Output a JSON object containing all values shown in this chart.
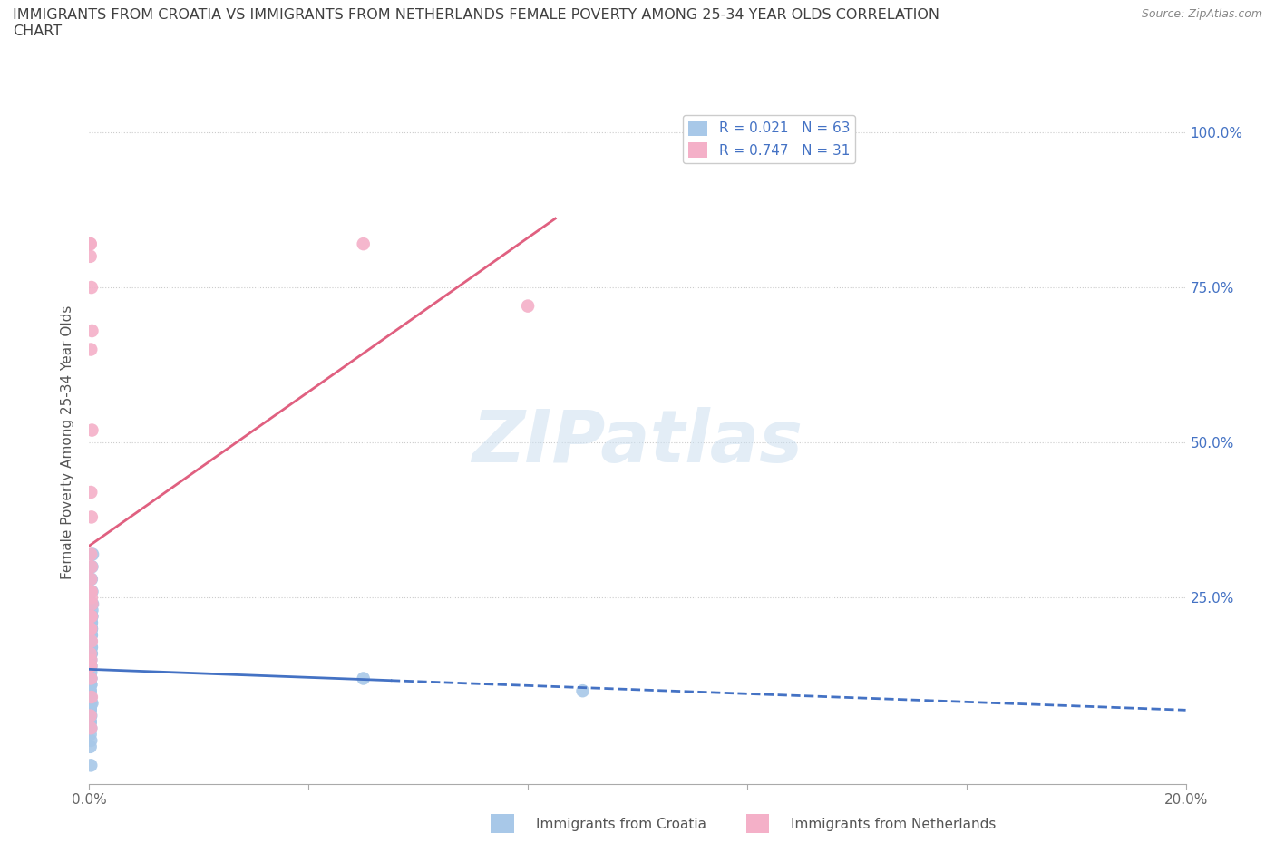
{
  "title": "IMMIGRANTS FROM CROATIA VS IMMIGRANTS FROM NETHERLANDS FEMALE POVERTY AMONG 25-34 YEAR OLDS CORRELATION\nCHART",
  "source_text": "Source: ZipAtlas.com",
  "ylabel": "Female Poverty Among 25-34 Year Olds",
  "xlabel_croatia": "Immigrants from Croatia",
  "xlabel_netherlands": "Immigrants from Netherlands",
  "watermark_text": "ZIPatlas",
  "R_croatia": 0.021,
  "N_croatia": 63,
  "R_netherlands": 0.747,
  "N_netherlands": 31,
  "color_croatia": "#a8c8e8",
  "color_netherlands": "#f4b0c8",
  "trendline_croatia_color": "#4472c4",
  "trendline_netherlands_color": "#e06080",
  "legend_r_color": "#4472c4",
  "background_color": "#ffffff",
  "grid_color": "#cccccc",
  "title_color": "#404040",
  "right_axis_color": "#4472c4",
  "source_color": "#888888",
  "croatia_x": [
    0.0002,
    0.0003,
    0.0005,
    0.0002,
    0.0004,
    0.0006,
    0.0003,
    0.0005,
    0.0004,
    0.0003,
    0.0002,
    0.0004,
    0.0003,
    0.0002,
    0.0005,
    0.0003,
    0.0002,
    0.0004,
    0.0003,
    0.0002,
    0.0003,
    0.0004,
    0.0002,
    0.0003,
    0.0005,
    0.0003,
    0.0004,
    0.0002,
    0.0003,
    0.0004,
    0.0002,
    0.0003,
    0.0002,
    0.0004,
    0.0003,
    0.0002,
    0.0003,
    0.0004,
    0.0002,
    0.0003,
    0.0002,
    0.0003,
    0.0004,
    0.0002,
    0.0003,
    0.0002,
    0.0004,
    0.0003,
    0.0002,
    0.0003,
    0.0004,
    0.0002,
    0.0003,
    0.0002,
    0.0004,
    0.0005,
    0.0003,
    0.0002,
    0.0006,
    0.05,
    0.09,
    0.0003,
    0.0002
  ],
  "croatia_y": [
    0.1,
    0.14,
    0.08,
    0.12,
    0.22,
    0.24,
    0.09,
    0.26,
    0.28,
    0.16,
    0.06,
    0.2,
    0.18,
    0.07,
    0.22,
    0.12,
    0.04,
    0.2,
    0.11,
    0.05,
    0.24,
    0.19,
    0.08,
    0.16,
    0.23,
    0.18,
    0.17,
    0.07,
    0.06,
    0.21,
    0.15,
    0.17,
    0.05,
    0.21,
    0.14,
    0.04,
    0.19,
    0.22,
    0.1,
    0.13,
    0.06,
    0.08,
    0.16,
    0.07,
    0.15,
    0.03,
    0.2,
    0.12,
    0.06,
    0.11,
    0.19,
    0.08,
    0.04,
    0.09,
    0.17,
    0.3,
    0.02,
    0.05,
    0.32,
    0.12,
    0.1,
    -0.02,
    0.01
  ],
  "netherlands_x": [
    0.0002,
    0.0004,
    0.0003,
    0.0002,
    0.0004,
    0.0003,
    0.0005,
    0.0002,
    0.0004,
    0.0003,
    0.0002,
    0.0004,
    0.0003,
    0.0002,
    0.0005,
    0.0003,
    0.0002,
    0.0004,
    0.0005,
    0.0003,
    0.0002,
    0.0004,
    0.0003,
    0.0004,
    0.0003,
    0.0002,
    0.0003,
    0.0004,
    0.05,
    0.08,
    0.0003
  ],
  "netherlands_y": [
    0.2,
    0.25,
    0.15,
    0.82,
    0.3,
    0.65,
    0.68,
    0.82,
    0.38,
    0.32,
    0.14,
    0.18,
    0.22,
    0.8,
    0.24,
    0.2,
    0.16,
    0.09,
    0.52,
    0.42,
    0.26,
    0.75,
    0.28,
    0.22,
    0.14,
    0.06,
    0.12,
    0.26,
    0.82,
    0.72,
    0.04
  ],
  "xlim": [
    0.0,
    0.2
  ],
  "ylim": [
    -0.05,
    1.05
  ],
  "x_ticks": [
    0.0,
    0.04,
    0.08,
    0.12,
    0.16,
    0.2
  ],
  "x_tick_labels": [
    "0.0%",
    "",
    "",
    "",
    "",
    "20.0%"
  ],
  "y_ticks": [
    0.0,
    0.25,
    0.5,
    0.75,
    1.0
  ],
  "y_tick_labels_right": [
    "",
    "25.0%",
    "50.0%",
    "75.0%",
    "100.0%"
  ],
  "figsize": [
    14.06,
    9.3
  ],
  "dpi": 100
}
